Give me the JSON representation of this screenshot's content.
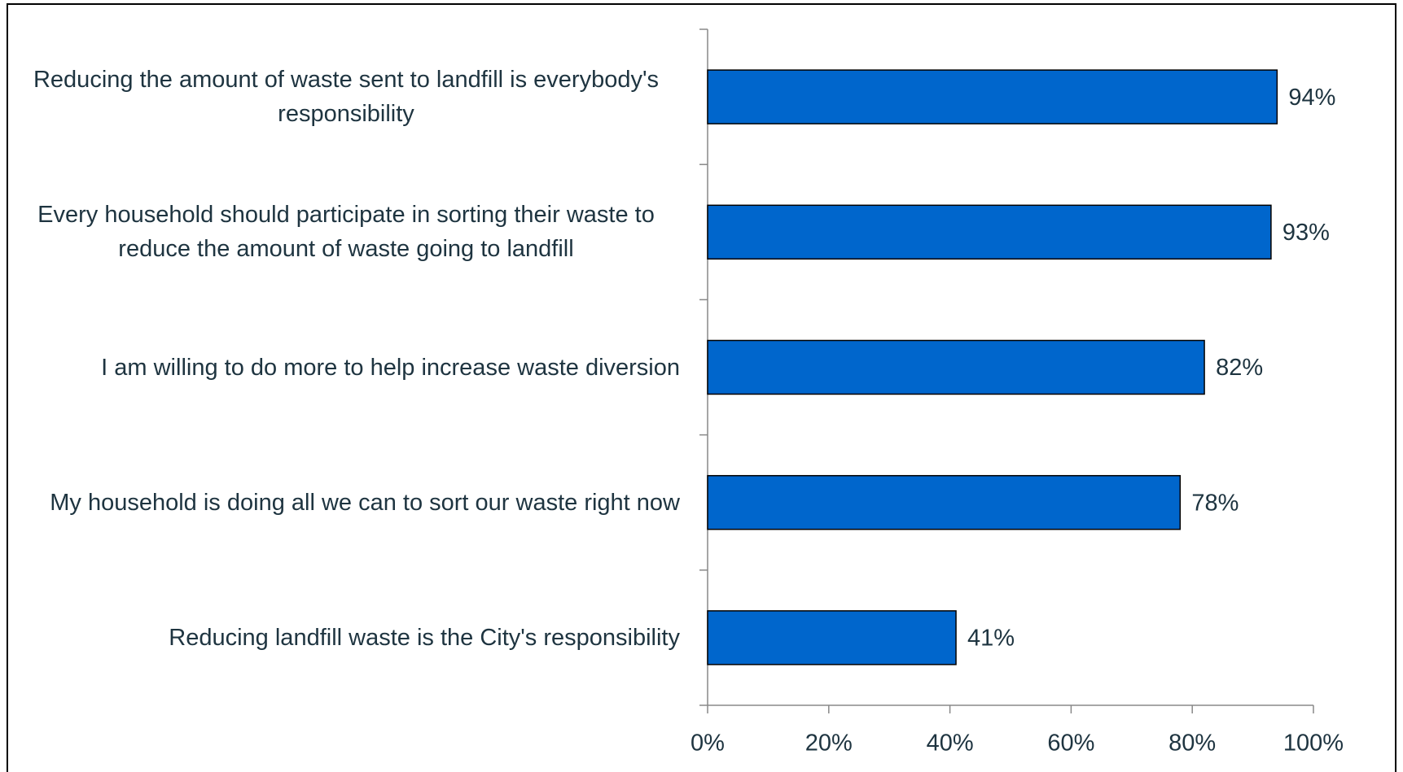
{
  "chart_data": {
    "type": "hbar",
    "categories": [
      "Reducing the amount of waste sent to landfill is everybody's responsibility",
      "Every household should participate in sorting their waste to reduce the amount of waste going to landfill",
      "I am willing to do more to help increase waste diversion",
      "My household is doing all we can to sort our waste right now",
      "Reducing landfill waste is the City's responsibility"
    ],
    "values": [
      94,
      93,
      82,
      78,
      41
    ],
    "value_labels": [
      "94%",
      "93%",
      "82%",
      "78%",
      "41%"
    ],
    "color": "#0066cc",
    "xlim": [
      0,
      100
    ],
    "xticks": [
      {
        "value": 0,
        "label": "0%"
      },
      {
        "value": 20,
        "label": "20%"
      },
      {
        "value": 40,
        "label": "40%"
      },
      {
        "value": 60,
        "label": "60%"
      },
      {
        "value": 80,
        "label": "80%"
      },
      {
        "value": 100,
        "label": "100%"
      }
    ],
    "grid": false
  }
}
